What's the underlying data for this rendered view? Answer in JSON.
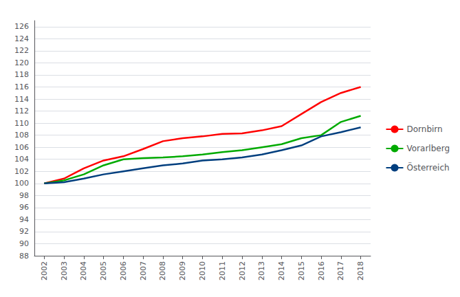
{
  "chart_data": {
    "type": "line",
    "categories": [
      "2002",
      "2003",
      "2004",
      "2005",
      "2006",
      "2007",
      "2008",
      "2009",
      "2010",
      "2011",
      "2012",
      "2013",
      "2014",
      "2015",
      "2016",
      "2017",
      "2018"
    ],
    "series": [
      {
        "name": "Dornbirn",
        "color": "#ff0000",
        "values": [
          100.0,
          100.8,
          102.5,
          103.8,
          104.5,
          105.7,
          107.0,
          107.5,
          107.8,
          108.2,
          108.3,
          108.8,
          109.5,
          111.5,
          113.5,
          115.0,
          116.0
        ]
      },
      {
        "name": "Vorarlberg",
        "color": "#00aa00",
        "values": [
          100.0,
          100.5,
          101.5,
          103.0,
          104.0,
          104.2,
          104.3,
          104.5,
          104.8,
          105.2,
          105.5,
          106.0,
          106.5,
          107.5,
          108.0,
          110.2,
          111.2
        ]
      },
      {
        "name": "Österreich",
        "color": "#003e7e",
        "values": [
          100.0,
          100.2,
          100.8,
          101.5,
          102.0,
          102.5,
          103.0,
          103.3,
          103.8,
          104.0,
          104.3,
          104.8,
          105.5,
          106.3,
          107.8,
          108.5,
          109.3
        ]
      }
    ],
    "ylim": [
      88,
      127
    ],
    "yticks": [
      88,
      90,
      92,
      94,
      96,
      98,
      100,
      102,
      104,
      106,
      108,
      110,
      112,
      114,
      116,
      118,
      120,
      122,
      124,
      126
    ],
    "grid": true,
    "legend": "right"
  }
}
